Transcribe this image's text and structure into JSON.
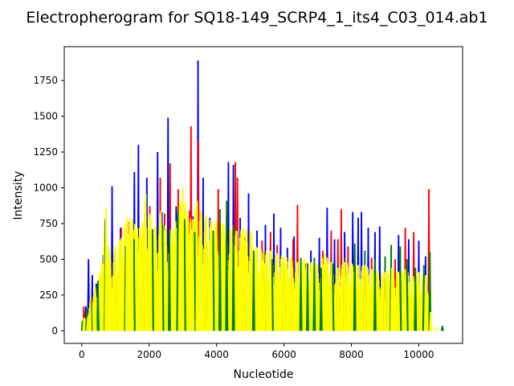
{
  "chart_data": {
    "type": "line",
    "title": "Electropherogram for SQ18-149_SCRP4_1_its4_C03_014.ab1",
    "xlabel": "Nucleotide",
    "ylabel": "Intensity",
    "xlim": [
      -520,
      11300
    ],
    "ylim": [
      -88,
      1987
    ],
    "x_ticks": [
      0,
      2000,
      4000,
      6000,
      8000,
      10000
    ],
    "y_ticks": [
      0,
      250,
      500,
      750,
      1000,
      1250,
      1500,
      1750
    ],
    "grid": false,
    "legend": "none",
    "series": [
      {
        "color": "#0000ff",
        "peaks": [
          [
            120,
            170
          ],
          [
            200,
            500
          ],
          [
            310,
            390
          ],
          [
            430,
            330
          ],
          [
            640,
            530
          ],
          [
            900,
            1010
          ],
          [
            1150,
            720
          ],
          [
            1320,
            560
          ],
          [
            1560,
            1110
          ],
          [
            1680,
            1300
          ],
          [
            1930,
            1070
          ],
          [
            2250,
            1250
          ],
          [
            2380,
            830
          ],
          [
            2560,
            1490
          ],
          [
            2800,
            870
          ],
          [
            3100,
            680
          ],
          [
            3300,
            800
          ],
          [
            3450,
            1890
          ],
          [
            3600,
            1070
          ],
          [
            3800,
            790
          ],
          [
            4050,
            720
          ],
          [
            4350,
            1180
          ],
          [
            4500,
            1160
          ],
          [
            4700,
            790
          ],
          [
            4950,
            960
          ],
          [
            5200,
            700
          ],
          [
            5450,
            740
          ],
          [
            5700,
            820
          ],
          [
            5900,
            720
          ],
          [
            6100,
            580
          ],
          [
            6300,
            660
          ],
          [
            6800,
            560
          ],
          [
            7050,
            650
          ],
          [
            7280,
            860
          ],
          [
            7500,
            640
          ],
          [
            7800,
            690
          ],
          [
            8040,
            830
          ],
          [
            8200,
            790
          ],
          [
            8300,
            830
          ],
          [
            8500,
            720
          ],
          [
            8700,
            690
          ],
          [
            8840,
            730
          ],
          [
            9400,
            670
          ],
          [
            9700,
            640
          ],
          [
            9850,
            510
          ],
          [
            10000,
            630
          ],
          [
            10200,
            520
          ]
        ]
      },
      {
        "color": "#ff0000",
        "peaks": [
          [
            60,
            170
          ],
          [
            300,
            220
          ],
          [
            560,
            330
          ],
          [
            780,
            470
          ],
          [
            1170,
            720
          ],
          [
            1400,
            760
          ],
          [
            1640,
            610
          ],
          [
            2020,
            870
          ],
          [
            2200,
            710
          ],
          [
            2330,
            1070
          ],
          [
            2460,
            820
          ],
          [
            2620,
            1170
          ],
          [
            2860,
            990
          ],
          [
            3200,
            840
          ],
          [
            3240,
            1430
          ],
          [
            3460,
            1330
          ],
          [
            3950,
            600
          ],
          [
            4050,
            990
          ],
          [
            4300,
            820
          ],
          [
            4560,
            1180
          ],
          [
            4620,
            1070
          ],
          [
            4850,
            650
          ],
          [
            5050,
            520
          ],
          [
            5350,
            630
          ],
          [
            5600,
            690
          ],
          [
            5800,
            600
          ],
          [
            6050,
            420
          ],
          [
            6270,
            640
          ],
          [
            6400,
            880
          ],
          [
            6650,
            470
          ],
          [
            6900,
            430
          ],
          [
            7150,
            560
          ],
          [
            7400,
            700
          ],
          [
            7600,
            640
          ],
          [
            7700,
            850
          ],
          [
            7900,
            590
          ],
          [
            8100,
            480
          ],
          [
            8600,
            510
          ],
          [
            9000,
            420
          ],
          [
            9300,
            500
          ],
          [
            9600,
            720
          ],
          [
            9850,
            690
          ],
          [
            10300,
            990
          ]
        ]
      },
      {
        "color": "#008000",
        "peaks": [
          [
            20,
            70
          ],
          [
            150,
            150
          ],
          [
            280,
            200
          ],
          [
            480,
            350
          ],
          [
            700,
            780
          ],
          [
            1000,
            560
          ],
          [
            1300,
            590
          ],
          [
            1550,
            640
          ],
          [
            1800,
            680
          ],
          [
            2100,
            710
          ],
          [
            2400,
            740
          ],
          [
            2600,
            700
          ],
          [
            2850,
            830
          ],
          [
            3050,
            780
          ],
          [
            3350,
            690
          ],
          [
            3700,
            790
          ],
          [
            3900,
            700
          ],
          [
            4100,
            850
          ],
          [
            4300,
            910
          ],
          [
            4500,
            740
          ],
          [
            4800,
            570
          ],
          [
            5100,
            560
          ],
          [
            5400,
            540
          ],
          [
            5650,
            500
          ],
          [
            6000,
            510
          ],
          [
            6200,
            480
          ],
          [
            6500,
            510
          ],
          [
            6700,
            470
          ],
          [
            6900,
            510
          ],
          [
            7100,
            440
          ],
          [
            7450,
            470
          ],
          [
            7600,
            460
          ],
          [
            7800,
            510
          ],
          [
            8100,
            610
          ],
          [
            8400,
            560
          ],
          [
            8700,
            500
          ],
          [
            9000,
            520
          ],
          [
            9180,
            600
          ],
          [
            9450,
            590
          ],
          [
            9650,
            500
          ],
          [
            9900,
            440
          ],
          [
            10150,
            460
          ],
          [
            10330,
            550
          ],
          [
            10700,
            35
          ]
        ]
      },
      {
        "color": "#ffff00",
        "peaks": [
          [
            60,
            90
          ],
          [
            180,
            100
          ],
          [
            250,
            220
          ],
          [
            400,
            300
          ],
          [
            600,
            480
          ],
          [
            720,
            860
          ],
          [
            850,
            500
          ],
          [
            1000,
            600
          ],
          [
            1170,
            650
          ],
          [
            1330,
            800
          ],
          [
            1500,
            780
          ],
          [
            1650,
            720
          ],
          [
            1800,
            760
          ],
          [
            1900,
            960
          ],
          [
            2050,
            790
          ],
          [
            2200,
            720
          ],
          [
            2350,
            840
          ],
          [
            2500,
            720
          ],
          [
            2700,
            700
          ],
          [
            2900,
            880
          ],
          [
            3000,
            1000
          ],
          [
            3150,
            800
          ],
          [
            3300,
            780
          ],
          [
            3420,
            910
          ],
          [
            3550,
            830
          ],
          [
            3700,
            800
          ],
          [
            3850,
            780
          ],
          [
            4000,
            760
          ],
          [
            4200,
            750
          ],
          [
            4400,
            710
          ],
          [
            4600,
            700
          ],
          [
            4800,
            720
          ],
          [
            5000,
            700
          ],
          [
            5200,
            580
          ],
          [
            5400,
            560
          ],
          [
            5600,
            560
          ],
          [
            5800,
            540
          ],
          [
            6000,
            520
          ],
          [
            6200,
            510
          ],
          [
            6400,
            480
          ],
          [
            6600,
            500
          ],
          [
            6800,
            480
          ],
          [
            7000,
            470
          ],
          [
            7200,
            540
          ],
          [
            7400,
            480
          ],
          [
            7600,
            440
          ],
          [
            7800,
            480
          ],
          [
            8000,
            470
          ],
          [
            8200,
            460
          ],
          [
            8400,
            460
          ],
          [
            8600,
            430
          ],
          [
            8800,
            420
          ],
          [
            9000,
            410
          ],
          [
            9200,
            440
          ],
          [
            9400,
            410
          ],
          [
            9600,
            430
          ],
          [
            9800,
            380
          ],
          [
            10000,
            410
          ],
          [
            10200,
            390
          ],
          [
            10350,
            130
          ],
          [
            10500,
            20
          ]
        ]
      }
    ]
  }
}
